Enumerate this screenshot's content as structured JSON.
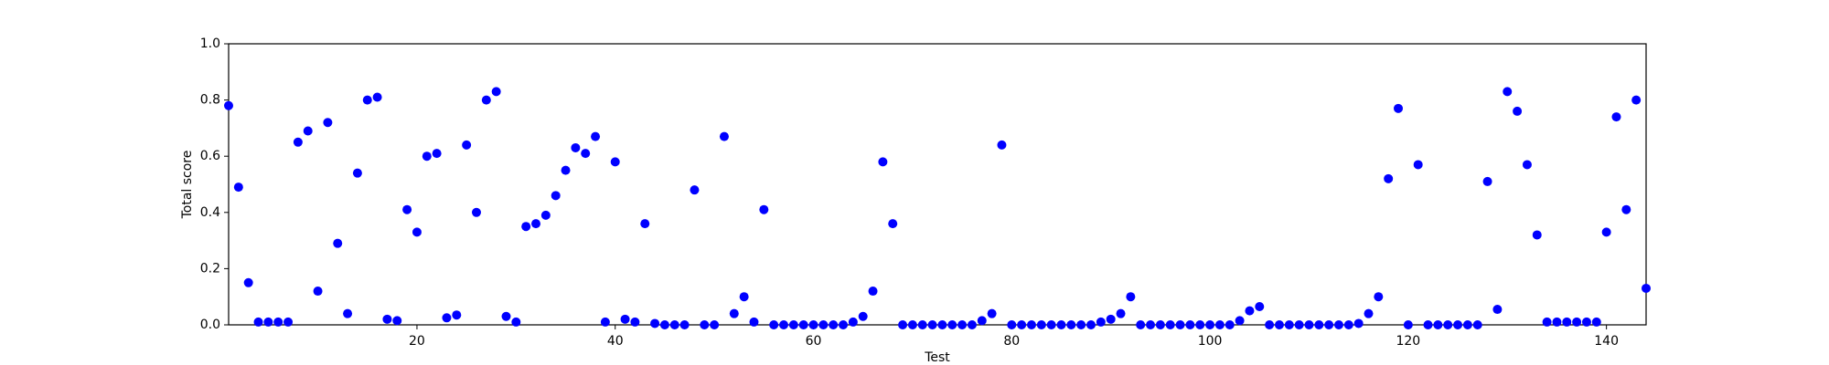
{
  "chart_data": {
    "type": "scatter",
    "xlabel": "Test",
    "ylabel": "Total score",
    "color": "#0000ff",
    "x": [
      1,
      2,
      3,
      4,
      5,
      6,
      7,
      8,
      9,
      10,
      11,
      12,
      13,
      14,
      15,
      16,
      17,
      18,
      19,
      20,
      21,
      22,
      23,
      24,
      25,
      26,
      27,
      28,
      29,
      30,
      31,
      32,
      33,
      34,
      35,
      36,
      37,
      38,
      39,
      40,
      41,
      42,
      43,
      44,
      45,
      46,
      47,
      48,
      49,
      50,
      51,
      52,
      53,
      54,
      55,
      56,
      57,
      58,
      59,
      60,
      61,
      62,
      63,
      64,
      65,
      66,
      67,
      68,
      69,
      70,
      71,
      72,
      73,
      74,
      75,
      76,
      77,
      78,
      79,
      80,
      81,
      82,
      83,
      84,
      85,
      86,
      87,
      88,
      89,
      90,
      91,
      92,
      93,
      94,
      95,
      96,
      97,
      98,
      99,
      100,
      101,
      102,
      103,
      104,
      105,
      106,
      107,
      108,
      109,
      110,
      111,
      112,
      113,
      114,
      115,
      116,
      117,
      118,
      119,
      120,
      121,
      122,
      123,
      124,
      125,
      126,
      127,
      128,
      129,
      130,
      131,
      132,
      133,
      134,
      135,
      136,
      137,
      138,
      139,
      140,
      141,
      142,
      143,
      144
    ],
    "values": [
      0.78,
      0.49,
      0.15,
      0.01,
      0.01,
      0.01,
      0.01,
      0.65,
      0.69,
      0.12,
      0.72,
      0.29,
      0.04,
      0.54,
      0.8,
      0.81,
      0.02,
      0.015,
      0.41,
      0.33,
      0.6,
      0.61,
      0.025,
      0.035,
      0.64,
      0.4,
      0.8,
      0.83,
      0.03,
      0.01,
      0.35,
      0.36,
      0.39,
      0.46,
      0.55,
      0.63,
      0.61,
      0.67,
      0.01,
      0.58,
      0.02,
      0.01,
      0.36,
      0.005,
      0,
      0,
      0,
      0.48,
      0,
      0,
      0.67,
      0.04,
      0.1,
      0.01,
      0.41,
      0,
      0,
      0,
      0,
      0,
      0,
      0,
      0,
      0.01,
      0.03,
      0.12,
      0.58,
      0.36,
      0,
      0,
      0,
      0,
      0,
      0,
      0,
      0,
      0.015,
      0.04,
      0.64,
      0,
      0,
      0,
      0,
      0,
      0,
      0,
      0,
      0,
      0.01,
      0.02,
      0.04,
      0.1,
      0,
      0,
      0,
      0,
      0,
      0,
      0,
      0,
      0,
      0,
      0.015,
      0.05,
      0.065,
      0,
      0,
      0,
      0,
      0,
      0,
      0,
      0,
      0,
      0.005,
      0.04,
      0.1,
      0.52,
      0.77,
      0,
      0.57,
      0,
      0,
      0,
      0,
      0,
      0,
      0.51,
      0.055,
      0.83,
      0.76,
      0.57,
      0.32,
      0.01,
      0.01,
      0.01,
      0.01,
      0.01,
      0.01,
      0.33,
      0.74,
      0.41,
      0.8,
      0.13
    ],
    "xlim": [
      1,
      144
    ],
    "xticks": [
      20,
      40,
      60,
      80,
      100,
      120,
      140
    ],
    "ylim": [
      0,
      1
    ],
    "yticks": [
      {
        "value": 0,
        "label": "0.0"
      },
      0.2,
      0.4,
      0.6,
      0.8,
      {
        "value": 1,
        "label": "1.0"
      }
    ]
  }
}
